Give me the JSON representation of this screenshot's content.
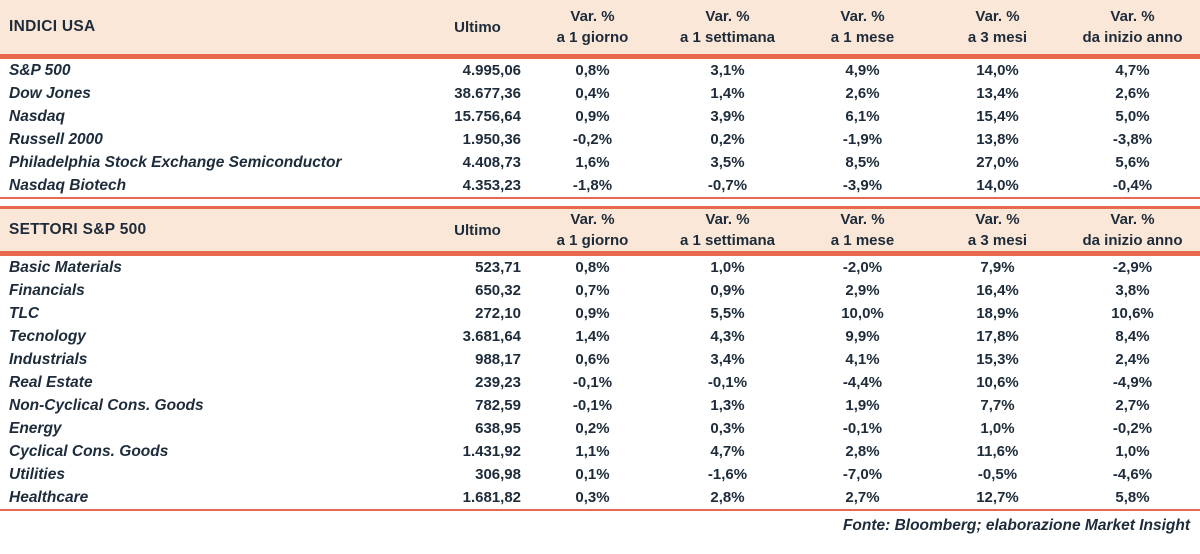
{
  "colors": {
    "header_bg": "#fbe7d7",
    "rule_red": "#e9694e",
    "text_navy": "#1d2b3a"
  },
  "columns": {
    "ultimo": "Ultimo",
    "var_label": "Var. %",
    "periods": [
      "a 1 giorno",
      "a 1 settimana",
      "a 1 mese",
      "a 3 mesi",
      "da inizio anno"
    ]
  },
  "tables": [
    {
      "title": "INDICI USA",
      "rows": [
        {
          "name": "S&P 500",
          "ultimo": "4.995,06",
          "values": [
            "0,8%",
            "3,1%",
            "4,9%",
            "14,0%",
            "4,7%"
          ]
        },
        {
          "name": "Dow Jones",
          "ultimo": "38.677,36",
          "values": [
            "0,4%",
            "1,4%",
            "2,6%",
            "13,4%",
            "2,6%"
          ]
        },
        {
          "name": "Nasdaq",
          "ultimo": "15.756,64",
          "values": [
            "0,9%",
            "3,9%",
            "6,1%",
            "15,4%",
            "5,0%"
          ]
        },
        {
          "name": "Russell 2000",
          "ultimo": "1.950,36",
          "values": [
            "-0,2%",
            "0,2%",
            "-1,9%",
            "13,8%",
            "-3,8%"
          ]
        },
        {
          "name": "Philadelphia Stock Exchange Semiconductor",
          "ultimo": "4.408,73",
          "values": [
            "1,6%",
            "3,5%",
            "8,5%",
            "27,0%",
            "5,6%"
          ]
        },
        {
          "name": "Nasdaq Biotech",
          "ultimo": "4.353,23",
          "values": [
            "-1,8%",
            "-0,7%",
            "-3,9%",
            "14,0%",
            "-0,4%"
          ]
        }
      ]
    },
    {
      "title": "SETTORI S&P 500",
      "rows": [
        {
          "name": "Basic Materials",
          "ultimo": "523,71",
          "values": [
            "0,8%",
            "1,0%",
            "-2,0%",
            "7,9%",
            "-2,9%"
          ]
        },
        {
          "name": "Financials",
          "ultimo": "650,32",
          "values": [
            "0,7%",
            "0,9%",
            "2,9%",
            "16,4%",
            "3,8%"
          ]
        },
        {
          "name": "TLC",
          "ultimo": "272,10",
          "values": [
            "0,9%",
            "5,5%",
            "10,0%",
            "18,9%",
            "10,6%"
          ]
        },
        {
          "name": "Tecnology",
          "ultimo": "3.681,64",
          "values": [
            "1,4%",
            "4,3%",
            "9,9%",
            "17,8%",
            "8,4%"
          ]
        },
        {
          "name": "Industrials",
          "ultimo": "988,17",
          "values": [
            "0,6%",
            "3,4%",
            "4,1%",
            "15,3%",
            "2,4%"
          ]
        },
        {
          "name": "Real Estate",
          "ultimo": "239,23",
          "values": [
            "-0,1%",
            "-0,1%",
            "-4,4%",
            "10,6%",
            "-4,9%"
          ]
        },
        {
          "name": "Non-Cyclical Cons. Goods",
          "ultimo": "782,59",
          "values": [
            "-0,1%",
            "1,3%",
            "1,9%",
            "7,7%",
            "2,7%"
          ]
        },
        {
          "name": "Energy",
          "ultimo": "638,95",
          "values": [
            "0,2%",
            "0,3%",
            "-0,1%",
            "1,0%",
            "-0,2%"
          ]
        },
        {
          "name": "Cyclical Cons. Goods",
          "ultimo": "1.431,92",
          "values": [
            "1,1%",
            "4,7%",
            "2,8%",
            "11,6%",
            "1,0%"
          ]
        },
        {
          "name": "Utilities",
          "ultimo": "306,98",
          "values": [
            "0,1%",
            "-1,6%",
            "-7,0%",
            "-0,5%",
            "-4,6%"
          ]
        },
        {
          "name": "Healthcare",
          "ultimo": "1.681,82",
          "values": [
            "0,3%",
            "2,8%",
            "2,7%",
            "12,7%",
            "5,8%"
          ]
        }
      ]
    }
  ],
  "footer": "Fonte: Bloomberg; elaborazione Market Insight",
  "chart_data": [
    {
      "type": "table",
      "title": "INDICI USA",
      "columns": [
        "Ultimo",
        "Var. % a 1 giorno",
        "Var. % a 1 settimana",
        "Var. % a 1 mese",
        "Var. % a 3 mesi",
        "Var. % da inizio anno"
      ],
      "unit_note": "last five columns are percent",
      "rows": [
        {
          "name": "S&P 500",
          "values": [
            4995.06,
            0.8,
            3.1,
            4.9,
            14.0,
            4.7
          ]
        },
        {
          "name": "Dow Jones",
          "values": [
            38677.36,
            0.4,
            1.4,
            2.6,
            13.4,
            2.6
          ]
        },
        {
          "name": "Nasdaq",
          "values": [
            15756.64,
            0.9,
            3.9,
            6.1,
            15.4,
            5.0
          ]
        },
        {
          "name": "Russell 2000",
          "values": [
            1950.36,
            -0.2,
            0.2,
            -1.9,
            13.8,
            -3.8
          ]
        },
        {
          "name": "Philadelphia Stock Exchange Semiconductor",
          "values": [
            4408.73,
            1.6,
            3.5,
            8.5,
            27.0,
            5.6
          ]
        },
        {
          "name": "Nasdaq Biotech",
          "values": [
            4353.23,
            -1.8,
            -0.7,
            -3.9,
            14.0,
            -0.4
          ]
        }
      ]
    },
    {
      "type": "table",
      "title": "SETTORI S&P 500",
      "columns": [
        "Ultimo",
        "Var. % a 1 giorno",
        "Var. % a 1 settimana",
        "Var. % a 1 mese",
        "Var. % a 3 mesi",
        "Var. % da inizio anno"
      ],
      "unit_note": "last five columns are percent",
      "rows": [
        {
          "name": "Basic Materials",
          "values": [
            523.71,
            0.8,
            1.0,
            -2.0,
            7.9,
            -2.9
          ]
        },
        {
          "name": "Financials",
          "values": [
            650.32,
            0.7,
            0.9,
            2.9,
            16.4,
            3.8
          ]
        },
        {
          "name": "TLC",
          "values": [
            272.1,
            0.9,
            5.5,
            10.0,
            18.9,
            10.6
          ]
        },
        {
          "name": "Tecnology",
          "values": [
            3681.64,
            1.4,
            4.3,
            9.9,
            17.8,
            8.4
          ]
        },
        {
          "name": "Industrials",
          "values": [
            988.17,
            0.6,
            3.4,
            4.1,
            15.3,
            2.4
          ]
        },
        {
          "name": "Real Estate",
          "values": [
            239.23,
            -0.1,
            -0.1,
            -4.4,
            10.6,
            -4.9
          ]
        },
        {
          "name": "Non-Cyclical Cons. Goods",
          "values": [
            782.59,
            -0.1,
            1.3,
            1.9,
            7.7,
            2.7
          ]
        },
        {
          "name": "Energy",
          "values": [
            638.95,
            0.2,
            0.3,
            -0.1,
            1.0,
            -0.2
          ]
        },
        {
          "name": "Cyclical Cons. Goods",
          "values": [
            1431.92,
            1.1,
            4.7,
            2.8,
            11.6,
            1.0
          ]
        },
        {
          "name": "Utilities",
          "values": [
            306.98,
            0.1,
            -1.6,
            -7.0,
            -0.5,
            -4.6
          ]
        },
        {
          "name": "Healthcare",
          "values": [
            1681.82,
            0.3,
            2.8,
            2.7,
            12.7,
            5.8
          ]
        }
      ]
    }
  ]
}
